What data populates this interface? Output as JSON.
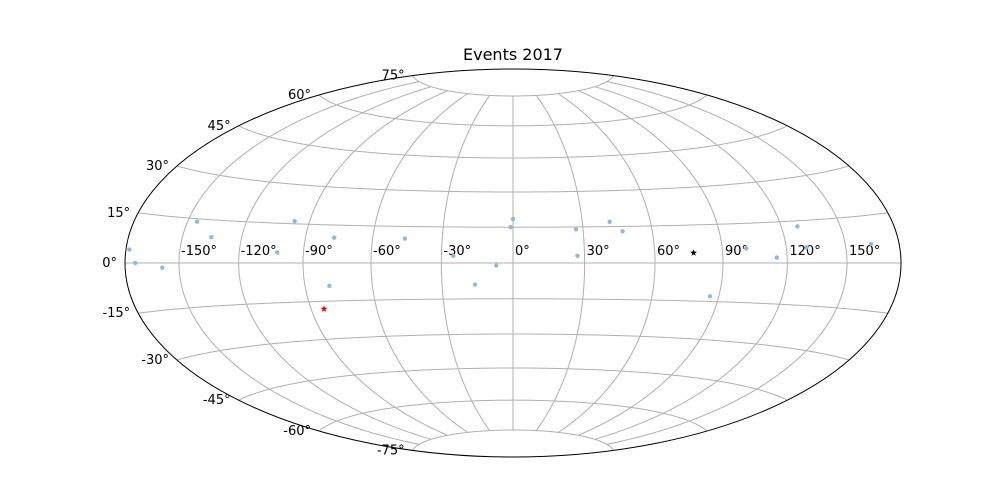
{
  "chart_data": {
    "type": "scatter",
    "projection": "hammer",
    "title": "Events 2017",
    "xlabel": "",
    "ylabel": "",
    "grid": true,
    "lon_ticks": [
      -150,
      -120,
      -90,
      -60,
      -30,
      0,
      30,
      60,
      90,
      120,
      150
    ],
    "lon_tick_labels": [
      "-150°",
      "-120°",
      "-90°",
      "-60°",
      "-30°",
      "0°",
      "30°",
      "60°",
      "90°",
      "120°",
      "150°"
    ],
    "lat_ticks": [
      -75,
      -60,
      -45,
      -30,
      -15,
      0,
      15,
      30,
      45,
      60,
      75
    ],
    "lat_tick_labels": [
      "-75°",
      "-60°",
      "-45°",
      "-30°",
      "-15°",
      "0°",
      "15°",
      "30°",
      "45°",
      "60°",
      "75°"
    ],
    "xlim": [
      -180,
      180
    ],
    "ylim": [
      -90,
      90
    ],
    "series": [
      {
        "marker": "dot",
        "color": "#8fb8de",
        "points": [
          {
            "lon": -178,
            "lat": 4
          },
          {
            "lon": -174,
            "lat": 0
          },
          {
            "lon": -159,
            "lat": -1.5
          },
          {
            "lon": -145,
            "lat": 14
          },
          {
            "lon": -135,
            "lat": 9
          },
          {
            "lon": -102,
            "lat": 4
          },
          {
            "lon": -97,
            "lat": 16
          },
          {
            "lon": -79,
            "lat": -9
          },
          {
            "lon": -77,
            "lat": 10
          },
          {
            "lon": -46,
            "lat": 10
          },
          {
            "lon": -25,
            "lat": 3
          },
          {
            "lon": -16,
            "lat": -9
          },
          {
            "lon": -7,
            "lat": -1
          },
          {
            "lon": 0,
            "lat": 18.5
          },
          {
            "lon": -1,
            "lat": 15
          },
          {
            "lon": 27,
            "lat": 14
          },
          {
            "lon": 27,
            "lat": 3
          },
          {
            "lon": 42,
            "lat": 17
          },
          {
            "lon": 47,
            "lat": 13
          },
          {
            "lon": 86,
            "lat": -13
          },
          {
            "lon": 101,
            "lat": 5.5
          },
          {
            "lon": 115,
            "lat": 2
          },
          {
            "lon": 128,
            "lat": 13
          },
          {
            "lon": 130,
            "lat": 5.5
          },
          {
            "lon": 164,
            "lat": 6
          }
        ]
      },
      {
        "marker": "star",
        "color": "#000000",
        "points": [
          {
            "lon": 77,
            "lat": 4
          }
        ]
      },
      {
        "marker": "star",
        "color": "#e00000",
        "points": [
          {
            "lon": -84,
            "lat": -18
          }
        ]
      }
    ]
  }
}
